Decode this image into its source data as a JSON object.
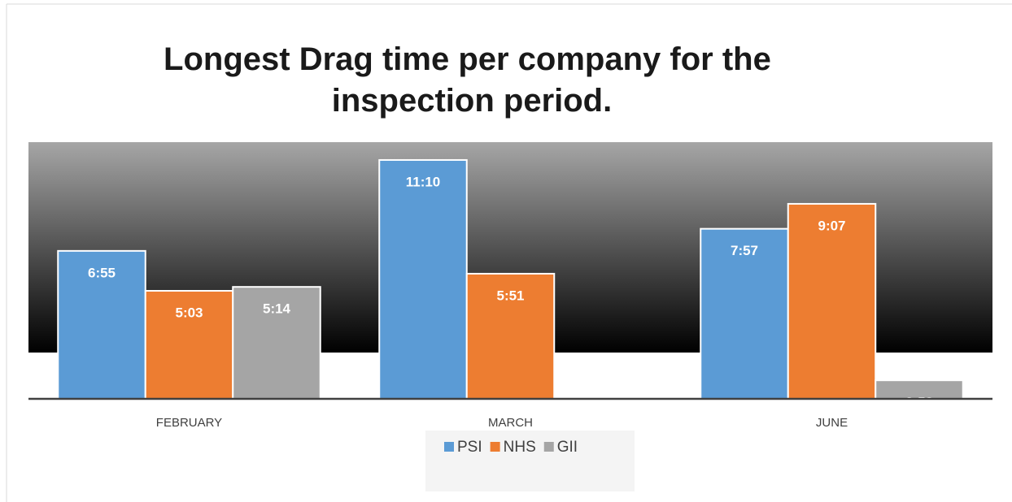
{
  "chart_data": {
    "type": "bar",
    "title": "Longest Drag time per company for the inspection period.",
    "categories": [
      "FEBRUARY",
      "MARCH",
      "JUNE"
    ],
    "series": [
      {
        "name": "PSI",
        "color": "#5b9bd5",
        "values": [
          415,
          670,
          477
        ],
        "value_labels": [
          "6:55",
          "11:10",
          "7:57"
        ]
      },
      {
        "name": "NHS",
        "color": "#ed7d31",
        "values": [
          303,
          351,
          547
        ],
        "value_labels": [
          "5:03",
          "5:51",
          "9:07"
        ]
      },
      {
        "name": "GII",
        "color": "#a5a5a5",
        "values": [
          314,
          null,
          52
        ],
        "value_labels": [
          "5:14",
          null,
          "0:52"
        ]
      }
    ],
    "ylim": [
      0,
      720
    ]
  }
}
